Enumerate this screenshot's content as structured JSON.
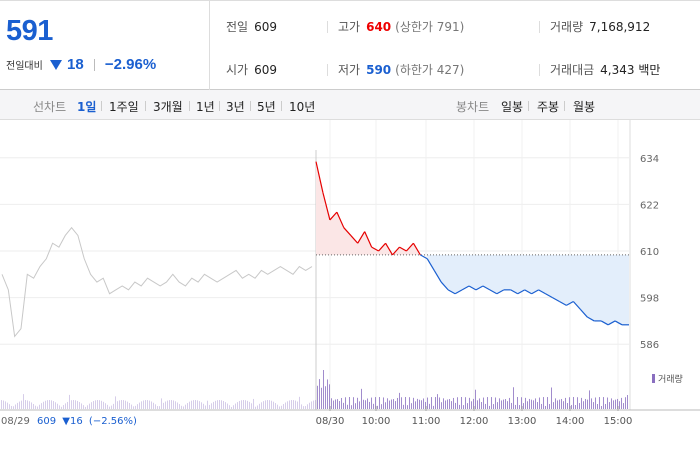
{
  "quote": {
    "price": "591",
    "change_label": "전일대비",
    "change_value": "18",
    "change_percent": "−2.96%",
    "prev_close": {
      "label": "전일",
      "value": "609"
    },
    "open": {
      "label": "시가",
      "value": "609"
    },
    "high": {
      "label": "고가",
      "value": "640",
      "sub": "(상한가 791)"
    },
    "low": {
      "label": "저가",
      "value": "590",
      "sub": "(하한가 427)"
    },
    "volume": {
      "label": "거래량",
      "value": "7,168,912"
    },
    "amount": {
      "label": "거래대금",
      "value": "4,343 백만"
    }
  },
  "tabs": {
    "line_label": "선차트",
    "line_periods": [
      "1일",
      "1주일",
      "3개월",
      "1년",
      "3년",
      "5년",
      "10년"
    ],
    "active": "1일",
    "candle_label": "봉차트",
    "candle_periods": [
      "일봉",
      "주봉",
      "월봉"
    ]
  },
  "colors": {
    "up": "#e60000",
    "down": "#1a5fd0",
    "prev_day_line": "#c8c8c8",
    "volume": "#8a6fc0",
    "fill_down": "#e3eefb",
    "fill_up": "#fbe6e6"
  },
  "chart_data": {
    "type": "line",
    "y_ticks": [
      634,
      622,
      610,
      598,
      586
    ],
    "ylim": [
      584,
      636
    ],
    "reference_value": 609,
    "x_ticks": [
      "08/30",
      "10:00",
      "11:00",
      "12:00",
      "13:00",
      "14:00",
      "15:00"
    ],
    "prev_day_tick": "08/29",
    "prev_day_summary": {
      "value": "609",
      "change": "16",
      "percent": "(−2.56%)"
    },
    "volume_legend": "거래량",
    "prev_day_series": [
      604,
      600,
      588,
      590,
      604,
      603,
      606,
      608,
      612,
      611,
      614,
      616,
      614,
      608,
      604,
      602,
      603,
      599,
      600,
      601,
      600,
      602,
      601,
      603,
      602,
      601,
      602,
      604,
      602,
      601,
      603,
      602,
      604,
      603,
      602,
      603,
      604,
      605,
      603,
      604,
      603,
      605,
      604,
      605,
      606,
      605,
      604,
      606,
      605,
      606
    ],
    "today_series": [
      633,
      625,
      618,
      620,
      616,
      614,
      612,
      615,
      611,
      610,
      612,
      609,
      611,
      610,
      612,
      609,
      608,
      605,
      602,
      600,
      599,
      600,
      601,
      600,
      601,
      600,
      599,
      600,
      600,
      599,
      600,
      599,
      600,
      599,
      598,
      597,
      596,
      597,
      595,
      593,
      592,
      592,
      591,
      592,
      591,
      591
    ]
  }
}
